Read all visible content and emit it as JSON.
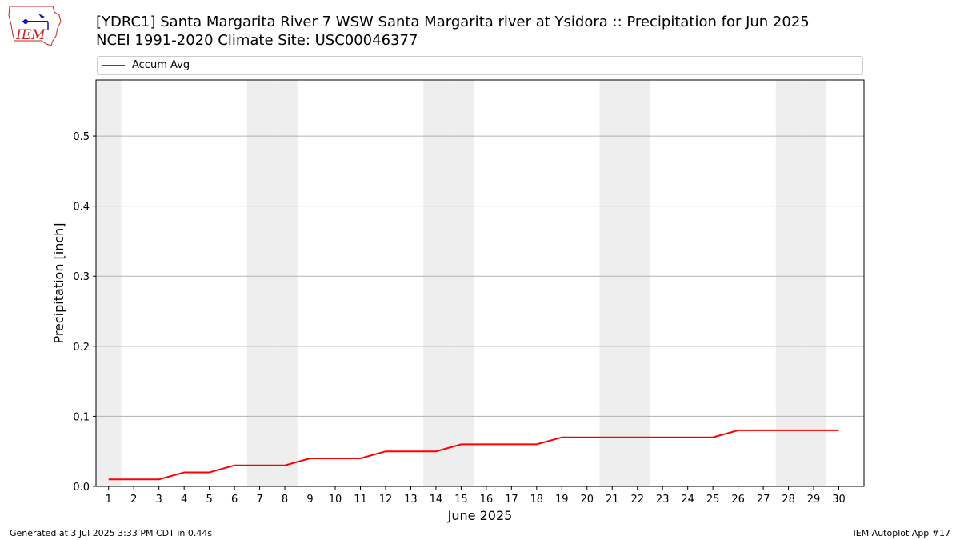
{
  "logo": {
    "text": "IEM"
  },
  "header": {
    "title_line1": "[YDRC1] Santa Margarita River 7 WSW Santa Margarita river at Ysidora :: Precipitation for Jun 2025",
    "title_line2": "NCEI 1991-2020 Climate Site: USC00046377"
  },
  "footer": {
    "left": "Generated at 3 Jul 2025 3:33 PM CDT in 0.44s",
    "right": "IEM Autoplot App #17"
  },
  "chart_data": {
    "type": "line",
    "x": [
      1,
      2,
      3,
      4,
      5,
      6,
      7,
      8,
      9,
      10,
      11,
      12,
      13,
      14,
      15,
      16,
      17,
      18,
      19,
      20,
      21,
      22,
      23,
      24,
      25,
      26,
      27,
      28,
      29,
      30
    ],
    "series": [
      {
        "name": "Accum Avg",
        "color": "#ff0000",
        "values": [
          0.01,
          0.01,
          0.01,
          0.02,
          0.02,
          0.03,
          0.03,
          0.03,
          0.04,
          0.04,
          0.04,
          0.05,
          0.05,
          0.05,
          0.06,
          0.06,
          0.06,
          0.06,
          0.07,
          0.07,
          0.07,
          0.07,
          0.07,
          0.07,
          0.07,
          0.08,
          0.08,
          0.08,
          0.08,
          0.08
        ]
      }
    ],
    "xlabel": "June 2025",
    "ylabel": "Precipitation [inch]",
    "xticks": [
      "1",
      "2",
      "3",
      "4",
      "5",
      "6",
      "7",
      "8",
      "9",
      "10",
      "11",
      "12",
      "13",
      "14",
      "15",
      "16",
      "17",
      "18",
      "19",
      "20",
      "21",
      "22",
      "23",
      "24",
      "25",
      "26",
      "27",
      "28",
      "29",
      "30"
    ],
    "yticks": [
      "0.0",
      "0.1",
      "0.2",
      "0.3",
      "0.4",
      "0.5"
    ],
    "xlim": [
      0.5,
      31.0
    ],
    "ylim": [
      0,
      0.58
    ],
    "weekend_days": [
      1,
      7,
      8,
      14,
      15,
      21,
      22,
      28,
      29
    ],
    "weekend_color": "#eeeeee",
    "grid": "horizontal",
    "legend_placement": "top"
  }
}
